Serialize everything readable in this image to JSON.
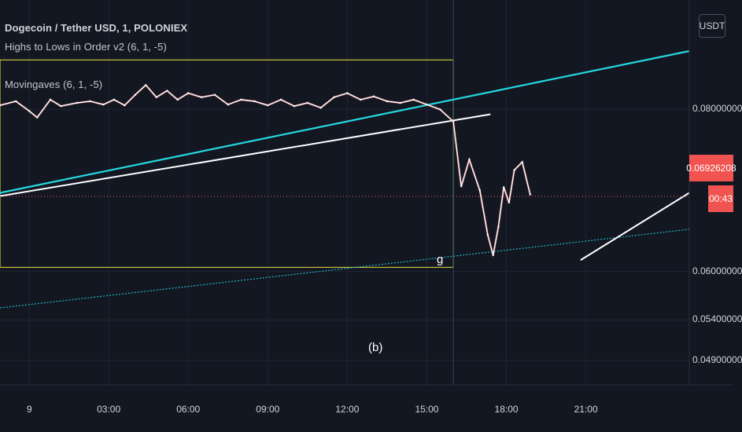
{
  "header": {
    "symbol_title": "Dogecoin / Tether USD, 1, POLONIEX",
    "indicator_1": "Highs to Lows in Order v2 (6, 1, -5)",
    "indicator_2": "Movingaves (6, 1, -5)"
  },
  "currency_button": "USDT",
  "current_price_label": "0.06926208",
  "countdown_label": "00:43",
  "annotations": {
    "wave_label": "(b)",
    "g_label": "g"
  },
  "colors": {
    "background": "#131722",
    "grid": "#1f2431",
    "price_line": "#ffffff",
    "upper_trend": "#26d7e0",
    "lower_trend_dotted": "#1fb6c8",
    "box": "#c9c13a",
    "current_price": "#f05350"
  },
  "chart_data": {
    "type": "line",
    "title": "Dogecoin / Tether USD, 1, POLONIEX",
    "x_tick_labels": [
      "9",
      "03:00",
      "06:00",
      "09:00",
      "12:00",
      "15:00",
      "18:00",
      "21:00"
    ],
    "y_tick_labels": [
      "0.08000000",
      "0.06000000",
      "0.05400000",
      "0.04900000"
    ],
    "y_tick_values": [
      0.08,
      0.06,
      0.054,
      0.049
    ],
    "ylim": [
      0.046,
      0.0935
    ],
    "xlim_hours": [
      -1.1,
      24.9
    ],
    "current_price": 0.06926208,
    "series": [
      {
        "name": "Dogecoin / Tether USD",
        "x_hours": [
          -1.1,
          -0.5,
          0,
          0.3,
          0.8,
          1.2,
          1.8,
          2.3,
          2.8,
          3.2,
          3.6,
          4.0,
          4.4,
          4.8,
          5.2,
          5.6,
          6.0,
          6.5,
          7.0,
          7.5,
          8.0,
          8.5,
          9.0,
          9.5,
          10.0,
          10.5,
          11.0,
          11.5,
          12.0,
          12.5,
          13.0,
          13.5,
          14.0,
          14.5,
          15.0,
          15.5,
          16.0,
          16.3,
          16.6,
          17.0,
          17.3,
          17.5,
          17.7,
          17.9,
          18.1,
          18.3,
          18.6,
          18.9
        ],
        "y": [
          0.0805,
          0.081,
          0.0798,
          0.079,
          0.0812,
          0.0804,
          0.0808,
          0.081,
          0.0806,
          0.0812,
          0.0805,
          0.0818,
          0.083,
          0.0815,
          0.0823,
          0.0812,
          0.082,
          0.0815,
          0.0818,
          0.0806,
          0.0812,
          0.081,
          0.0805,
          0.0812,
          0.0804,
          0.0808,
          0.0802,
          0.0815,
          0.082,
          0.0812,
          0.0816,
          0.081,
          0.0808,
          0.0812,
          0.0806,
          0.08,
          0.0785,
          0.0705,
          0.0738,
          0.07,
          0.0645,
          0.062,
          0.0655,
          0.0704,
          0.0685,
          0.0725,
          0.0735,
          0.0695
        ]
      }
    ],
    "trend_lines": [
      {
        "name": "upper-cyan-trendline",
        "x_hours": [
          -1.1,
          24.9
        ],
        "y": [
          0.0697,
          0.0872
        ]
      },
      {
        "name": "white-trendline",
        "x_hours": [
          -1.1,
          17.4
        ],
        "y": [
          0.0693,
          0.0794
        ]
      },
      {
        "name": "dotted-cyan-trendline",
        "x_hours": [
          -1.1,
          24.9
        ],
        "y": [
          0.0555,
          0.0652
        ]
      },
      {
        "name": "projection-line",
        "x_hours": [
          20.8,
          24.9
        ],
        "y": [
          0.0614,
          0.0697
        ]
      }
    ],
    "box": {
      "x_hours": [
        -1.1,
        16.0
      ],
      "y": [
        0.0605,
        0.0861
      ]
    }
  }
}
